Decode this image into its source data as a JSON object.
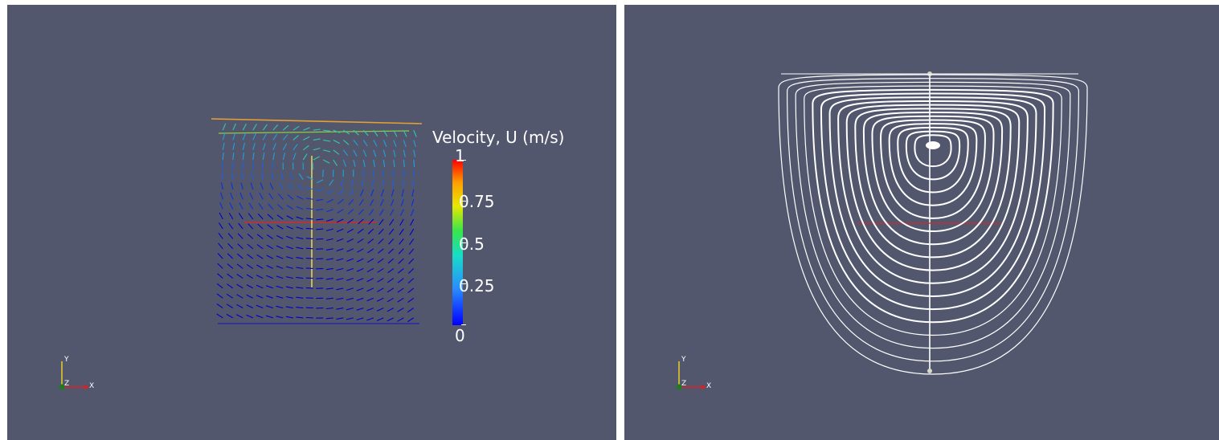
{
  "left_view": {
    "colorbar": {
      "title": "Velocity, U (m/s)",
      "labels": [
        "1",
        "0.75",
        "0.5",
        "0.25",
        "0"
      ],
      "colors": [
        "#ff0000",
        "#ffa000",
        "#e8e800",
        "#37e64a",
        "#17dcc8",
        "#2a8cff",
        "#0000ff"
      ]
    },
    "orientation_axes": {
      "x_label": "X",
      "y_label": "Y",
      "z_label": "Z"
    }
  },
  "right_view": {
    "orientation_axes": {
      "x_label": "X",
      "y_label": "Y",
      "z_label": "Z"
    }
  },
  "colors": {
    "background": "#52576e",
    "streamline": "#ffffff",
    "probe_line": "#cc2b2b"
  }
}
